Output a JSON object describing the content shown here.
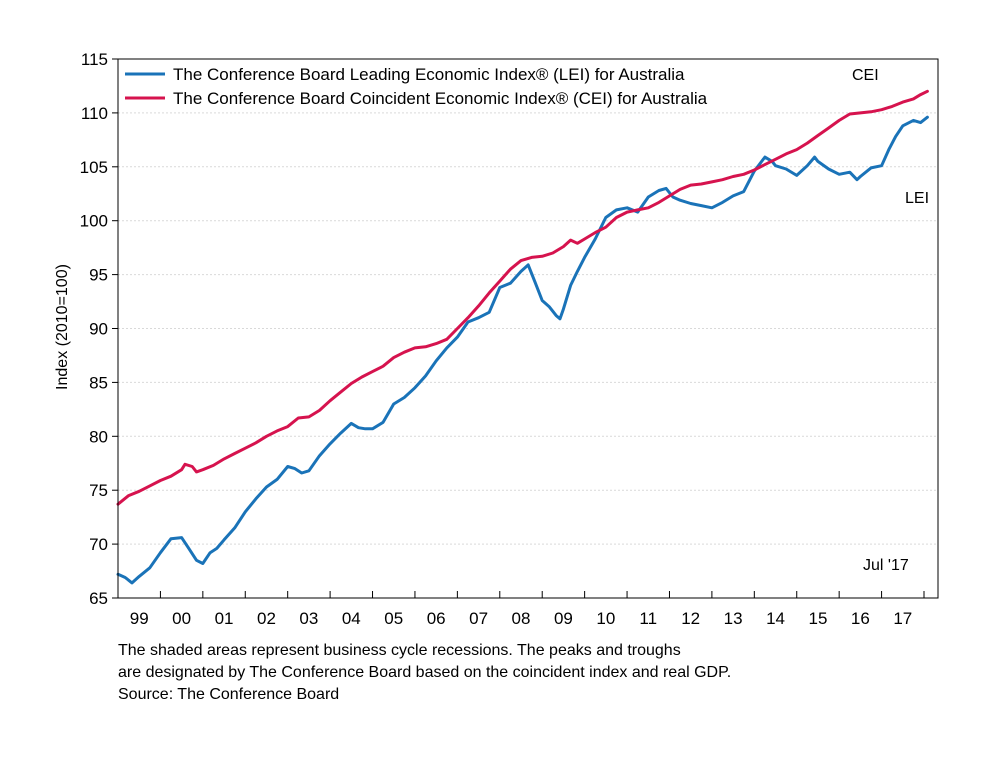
{
  "chart_data": {
    "type": "line",
    "ylabel": "Index (2010=100)",
    "xlabel": "",
    "ylim": [
      65,
      115
    ],
    "yticks": [
      65,
      70,
      75,
      80,
      85,
      90,
      95,
      100,
      105,
      110,
      115
    ],
    "xlim": [
      1998.5,
      2017.83
    ],
    "xticks": [
      {
        "label": "99",
        "x": 1999.0
      },
      {
        "label": "00",
        "x": 2000.0
      },
      {
        "label": "01",
        "x": 2001.0
      },
      {
        "label": "02",
        "x": 2002.0
      },
      {
        "label": "03",
        "x": 2003.0
      },
      {
        "label": "04",
        "x": 2004.0
      },
      {
        "label": "05",
        "x": 2005.0
      },
      {
        "label": "06",
        "x": 2006.0
      },
      {
        "label": "07",
        "x": 2007.0
      },
      {
        "label": "08",
        "x": 2008.0
      },
      {
        "label": "09",
        "x": 2009.0
      },
      {
        "label": "10",
        "x": 2010.0
      },
      {
        "label": "11",
        "x": 2011.0
      },
      {
        "label": "12",
        "x": 2012.0
      },
      {
        "label": "13",
        "x": 2013.0
      },
      {
        "label": "14",
        "x": 2014.0
      },
      {
        "label": "15",
        "x": 2015.0
      },
      {
        "label": "16",
        "x": 2016.0
      },
      {
        "label": "17",
        "x": 2017.0
      }
    ],
    "grid": true,
    "legend_position": "top-left",
    "series": [
      {
        "name": "The Conference Board Leading Economic Index®  (LEI) for Australia",
        "color": "#1a73b8",
        "points": [
          [
            1998.5,
            67.2
          ],
          [
            1998.67,
            66.9
          ],
          [
            1998.83,
            66.4
          ],
          [
            1999.0,
            67.0
          ],
          [
            1999.25,
            67.8
          ],
          [
            1999.5,
            69.2
          ],
          [
            1999.75,
            70.5
          ],
          [
            2000.0,
            70.6
          ],
          [
            2000.17,
            69.6
          ],
          [
            2000.35,
            68.5
          ],
          [
            2000.5,
            68.2
          ],
          [
            2000.67,
            69.2
          ],
          [
            2000.83,
            69.6
          ],
          [
            2001.0,
            70.4
          ],
          [
            2001.25,
            71.5
          ],
          [
            2001.5,
            73.0
          ],
          [
            2001.75,
            74.2
          ],
          [
            2002.0,
            75.3
          ],
          [
            2002.25,
            76.0
          ],
          [
            2002.5,
            77.2
          ],
          [
            2002.67,
            77.0
          ],
          [
            2002.83,
            76.6
          ],
          [
            2003.0,
            76.8
          ],
          [
            2003.25,
            78.2
          ],
          [
            2003.5,
            79.3
          ],
          [
            2003.75,
            80.3
          ],
          [
            2004.0,
            81.2
          ],
          [
            2004.17,
            80.8
          ],
          [
            2004.33,
            80.7
          ],
          [
            2004.5,
            80.7
          ],
          [
            2004.75,
            81.3
          ],
          [
            2005.0,
            83.0
          ],
          [
            2005.25,
            83.6
          ],
          [
            2005.5,
            84.5
          ],
          [
            2005.75,
            85.6
          ],
          [
            2006.0,
            87.0
          ],
          [
            2006.25,
            88.2
          ],
          [
            2006.5,
            89.2
          ],
          [
            2006.75,
            90.6
          ],
          [
            2007.0,
            91.0
          ],
          [
            2007.25,
            91.5
          ],
          [
            2007.5,
            93.8
          ],
          [
            2007.75,
            94.2
          ],
          [
            2008.0,
            95.3
          ],
          [
            2008.17,
            95.9
          ],
          [
            2008.33,
            94.3
          ],
          [
            2008.5,
            92.6
          ],
          [
            2008.67,
            92.0
          ],
          [
            2008.83,
            91.2
          ],
          [
            2008.92,
            90.9
          ],
          [
            2009.0,
            91.8
          ],
          [
            2009.17,
            94.0
          ],
          [
            2009.33,
            95.3
          ],
          [
            2009.5,
            96.6
          ],
          [
            2009.75,
            98.3
          ],
          [
            2010.0,
            100.3
          ],
          [
            2010.25,
            101.0
          ],
          [
            2010.5,
            101.2
          ],
          [
            2010.75,
            100.8
          ],
          [
            2011.0,
            102.2
          ],
          [
            2011.25,
            102.8
          ],
          [
            2011.42,
            103.0
          ],
          [
            2011.58,
            102.2
          ],
          [
            2011.75,
            101.9
          ],
          [
            2012.0,
            101.6
          ],
          [
            2012.25,
            101.4
          ],
          [
            2012.5,
            101.2
          ],
          [
            2012.75,
            101.7
          ],
          [
            2013.0,
            102.3
          ],
          [
            2013.25,
            102.7
          ],
          [
            2013.5,
            104.6
          ],
          [
            2013.75,
            105.9
          ],
          [
            2013.92,
            105.5
          ],
          [
            2014.0,
            105.1
          ],
          [
            2014.25,
            104.8
          ],
          [
            2014.5,
            104.2
          ],
          [
            2014.75,
            105.1
          ],
          [
            2014.92,
            105.9
          ],
          [
            2015.0,
            105.5
          ],
          [
            2015.25,
            104.8
          ],
          [
            2015.5,
            104.3
          ],
          [
            2015.75,
            104.5
          ],
          [
            2015.92,
            103.8
          ],
          [
            2016.0,
            104.1
          ],
          [
            2016.25,
            104.9
          ],
          [
            2016.5,
            105.1
          ],
          [
            2016.67,
            106.6
          ],
          [
            2016.83,
            107.8
          ],
          [
            2017.0,
            108.8
          ],
          [
            2017.25,
            109.3
          ],
          [
            2017.42,
            109.1
          ],
          [
            2017.58,
            109.6
          ]
        ]
      },
      {
        "name": "The Conference Board Coincident Economic Index®  (CEI) for Australia",
        "color": "#d6134e",
        "points": [
          [
            1998.5,
            73.7
          ],
          [
            1998.75,
            74.5
          ],
          [
            1999.0,
            74.9
          ],
          [
            1999.25,
            75.4
          ],
          [
            1999.5,
            75.9
          ],
          [
            1999.75,
            76.3
          ],
          [
            2000.0,
            76.9
          ],
          [
            2000.08,
            77.4
          ],
          [
            2000.25,
            77.2
          ],
          [
            2000.35,
            76.7
          ],
          [
            2000.5,
            76.9
          ],
          [
            2000.75,
            77.3
          ],
          [
            2001.0,
            77.9
          ],
          [
            2001.25,
            78.4
          ],
          [
            2001.5,
            78.9
          ],
          [
            2001.75,
            79.4
          ],
          [
            2002.0,
            80.0
          ],
          [
            2002.25,
            80.5
          ],
          [
            2002.5,
            80.9
          ],
          [
            2002.75,
            81.7
          ],
          [
            2003.0,
            81.8
          ],
          [
            2003.25,
            82.4
          ],
          [
            2003.5,
            83.3
          ],
          [
            2003.75,
            84.1
          ],
          [
            2004.0,
            84.9
          ],
          [
            2004.25,
            85.5
          ],
          [
            2004.5,
            86.0
          ],
          [
            2004.75,
            86.5
          ],
          [
            2005.0,
            87.3
          ],
          [
            2005.25,
            87.8
          ],
          [
            2005.5,
            88.2
          ],
          [
            2005.75,
            88.3
          ],
          [
            2006.0,
            88.6
          ],
          [
            2006.25,
            89.0
          ],
          [
            2006.5,
            90.0
          ],
          [
            2006.75,
            91.0
          ],
          [
            2007.0,
            92.1
          ],
          [
            2007.25,
            93.3
          ],
          [
            2007.5,
            94.4
          ],
          [
            2007.75,
            95.5
          ],
          [
            2008.0,
            96.3
          ],
          [
            2008.25,
            96.6
          ],
          [
            2008.5,
            96.7
          ],
          [
            2008.75,
            97.0
          ],
          [
            2009.0,
            97.6
          ],
          [
            2009.17,
            98.2
          ],
          [
            2009.33,
            97.9
          ],
          [
            2009.5,
            98.3
          ],
          [
            2009.75,
            98.9
          ],
          [
            2010.0,
            99.4
          ],
          [
            2010.25,
            100.3
          ],
          [
            2010.5,
            100.8
          ],
          [
            2010.75,
            101.0
          ],
          [
            2011.0,
            101.2
          ],
          [
            2011.25,
            101.7
          ],
          [
            2011.5,
            102.3
          ],
          [
            2011.75,
            102.9
          ],
          [
            2012.0,
            103.3
          ],
          [
            2012.25,
            103.4
          ],
          [
            2012.5,
            103.6
          ],
          [
            2012.75,
            103.8
          ],
          [
            2013.0,
            104.1
          ],
          [
            2013.25,
            104.3
          ],
          [
            2013.5,
            104.7
          ],
          [
            2013.75,
            105.2
          ],
          [
            2014.0,
            105.7
          ],
          [
            2014.25,
            106.2
          ],
          [
            2014.5,
            106.6
          ],
          [
            2014.75,
            107.2
          ],
          [
            2015.0,
            107.9
          ],
          [
            2015.25,
            108.6
          ],
          [
            2015.5,
            109.3
          ],
          [
            2015.75,
            109.9
          ],
          [
            2016.0,
            110.0
          ],
          [
            2016.25,
            110.1
          ],
          [
            2016.5,
            110.3
          ],
          [
            2016.75,
            110.6
          ],
          [
            2017.0,
            111.0
          ],
          [
            2017.25,
            111.3
          ],
          [
            2017.42,
            111.7
          ],
          [
            2017.58,
            112.0
          ]
        ]
      }
    ],
    "annotations": {
      "cei": "CEI",
      "lei": "LEI",
      "date": "Jul '17"
    },
    "footnote": [
      "The shaded areas represent business cycle recessions. The peaks and troughs",
      "are designated by The Conference Board based on the coincident index and real GDP.",
      "Source: The Conference Board"
    ]
  }
}
